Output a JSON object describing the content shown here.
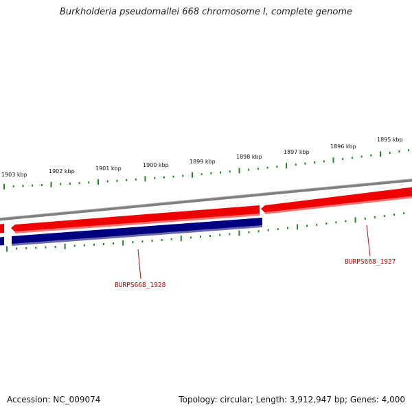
{
  "title": "Burkholderia pseudomallei 668 chromosome I, complete genome",
  "footer": {
    "accession": "Accession: NC_009074",
    "summary": "Topology: circular; Length: 3,912,947 bp; Genes: 4,000"
  },
  "scale_labels": [
    "1903 kbp",
    "1902 kbp",
    "1901 kbp",
    "1900 kbp",
    "1899 kbp",
    "1898 kbp",
    "1897 kbp",
    "1896 kbp",
    "1895 kbp"
  ],
  "genes": [
    {
      "name": "BURPS668_1927",
      "strand": "forward"
    },
    {
      "name": "BURPS668_1928",
      "strand": "reverse"
    }
  ],
  "colors": {
    "backbone": "#808080",
    "forward_strand": "#ee0000",
    "reverse_strand": "#000080",
    "tick": "#228822",
    "label": "#cc0000"
  }
}
